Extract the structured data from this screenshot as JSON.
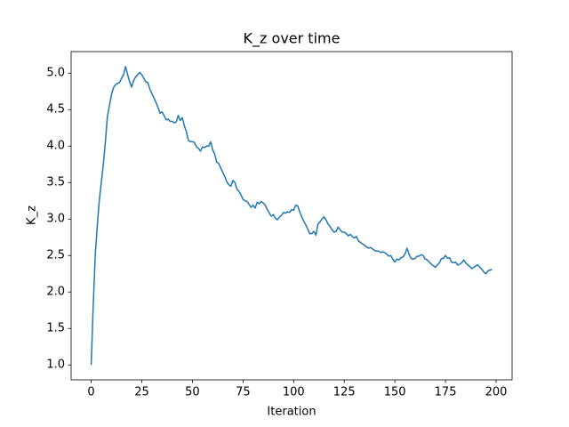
{
  "chart_data": {
    "type": "line",
    "title": "K_z over time",
    "xlabel": "Iteration",
    "ylabel": "K_z",
    "color": "#1f77b4",
    "x": [
      0,
      1,
      2,
      3,
      4,
      5,
      6,
      7,
      8,
      9,
      10,
      11,
      12,
      13,
      14,
      15,
      16,
      17,
      18,
      19,
      20,
      21,
      22,
      23,
      24,
      25,
      26,
      27,
      28,
      29,
      30,
      31,
      32,
      33,
      34,
      35,
      36,
      37,
      38,
      39,
      40,
      41,
      42,
      43,
      44,
      45,
      46,
      47,
      48,
      49,
      50,
      51,
      52,
      53,
      54,
      55,
      56,
      57,
      58,
      59,
      60,
      61,
      62,
      63,
      64,
      65,
      66,
      67,
      68,
      69,
      70,
      71,
      72,
      73,
      74,
      75,
      76,
      77,
      78,
      79,
      80,
      81,
      82,
      83,
      84,
      85,
      86,
      87,
      88,
      89,
      90,
      91,
      92,
      93,
      94,
      95,
      96,
      97,
      98,
      99,
      100,
      101,
      102,
      103,
      104,
      105,
      106,
      107,
      108,
      109,
      110,
      111,
      112,
      113,
      114,
      115,
      116,
      117,
      118,
      119,
      120,
      121,
      122,
      123,
      124,
      125,
      126,
      127,
      128,
      129,
      130,
      131,
      132,
      133,
      134,
      135,
      136,
      137,
      138,
      139,
      140,
      141,
      142,
      143,
      144,
      145,
      146,
      147,
      148,
      149,
      150,
      151,
      152,
      153,
      154,
      155,
      156,
      157,
      158,
      159,
      160,
      161,
      162,
      163,
      164,
      165,
      166,
      167,
      168,
      169,
      170,
      171,
      172,
      173,
      174,
      175,
      176,
      177,
      178,
      179,
      180,
      181,
      182,
      183,
      184,
      185,
      186,
      187,
      188,
      189,
      190,
      191,
      192,
      193,
      194,
      195,
      196,
      197,
      198
    ],
    "values": [
      1.0,
      1.8,
      2.5,
      2.9,
      3.25,
      3.5,
      3.75,
      4.05,
      4.4,
      4.55,
      4.7,
      4.8,
      4.84,
      4.86,
      4.87,
      4.93,
      4.98,
      5.09,
      4.98,
      4.88,
      4.81,
      4.9,
      4.95,
      4.98,
      5.01,
      4.98,
      4.93,
      4.88,
      4.87,
      4.78,
      4.72,
      4.66,
      4.6,
      4.53,
      4.45,
      4.47,
      4.42,
      4.36,
      4.37,
      4.34,
      4.34,
      4.32,
      4.33,
      4.42,
      4.35,
      4.39,
      4.28,
      4.2,
      4.08,
      4.06,
      4.06,
      4.05,
      3.99,
      3.97,
      3.93,
      3.99,
      3.98,
      4.0,
      4.0,
      4.06,
      3.95,
      3.89,
      3.78,
      3.76,
      3.7,
      3.64,
      3.58,
      3.51,
      3.47,
      3.45,
      3.53,
      3.5,
      3.41,
      3.38,
      3.33,
      3.27,
      3.25,
      3.24,
      3.2,
      3.16,
      3.19,
      3.15,
      3.23,
      3.21,
      3.24,
      3.22,
      3.19,
      3.13,
      3.08,
      3.04,
      3.06,
      3.01,
      2.99,
      3.03,
      3.05,
      3.09,
      3.08,
      3.1,
      3.09,
      3.13,
      3.12,
      3.19,
      3.18,
      3.1,
      3.03,
      2.97,
      2.92,
      2.86,
      2.8,
      2.8,
      2.83,
      2.78,
      2.93,
      2.96,
      3.0,
      3.03,
      2.99,
      2.93,
      2.9,
      2.85,
      2.82,
      2.83,
      2.89,
      2.85,
      2.82,
      2.82,
      2.8,
      2.77,
      2.79,
      2.76,
      2.74,
      2.76,
      2.7,
      2.68,
      2.66,
      2.64,
      2.62,
      2.6,
      2.61,
      2.59,
      2.57,
      2.56,
      2.56,
      2.54,
      2.55,
      2.54,
      2.52,
      2.49,
      2.5,
      2.45,
      2.41,
      2.45,
      2.44,
      2.47,
      2.48,
      2.52,
      2.6,
      2.52,
      2.46,
      2.45,
      2.46,
      2.49,
      2.49,
      2.51,
      2.5,
      2.45,
      2.44,
      2.41,
      2.38,
      2.36,
      2.34,
      2.37,
      2.4,
      2.46,
      2.46,
      2.5,
      2.46,
      2.47,
      2.41,
      2.4,
      2.41,
      2.37,
      2.38,
      2.4,
      2.44,
      2.4,
      2.37,
      2.35,
      2.32,
      2.34,
      2.36,
      2.37,
      2.34,
      2.31,
      2.27,
      2.25,
      2.29,
      2.3,
      2.31
    ],
    "xlim": [
      -9.9,
      207.9
    ],
    "ylim": [
      0.7955,
      5.2955
    ],
    "xticks": [
      0,
      25,
      50,
      75,
      100,
      125,
      150,
      175,
      200
    ],
    "yticks": [
      {
        "value": 1,
        "label": "1.0"
      },
      1.5,
      {
        "value": 2,
        "label": "2.0"
      },
      2.5,
      {
        "value": 3,
        "label": "3.0"
      },
      3.5,
      {
        "value": 4,
        "label": "4.0"
      },
      4.5,
      {
        "value": 5,
        "label": "5.0"
      }
    ]
  }
}
